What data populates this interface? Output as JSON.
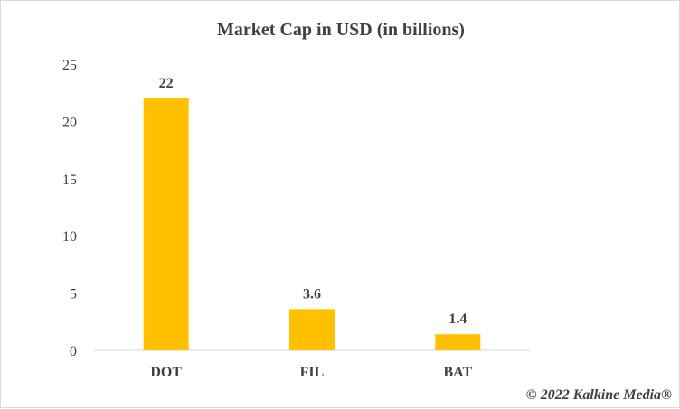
{
  "chart_data": {
    "type": "bar",
    "title": "Market Cap in USD (in billions)",
    "categories": [
      "DOT",
      "FIL",
      "BAT"
    ],
    "values": [
      22,
      3.6,
      1.4
    ],
    "data_labels": [
      "22",
      "3.6",
      "1.4"
    ],
    "ylim": [
      0,
      25
    ],
    "yticks": [
      "0",
      "5",
      "10",
      "15",
      "20",
      "25"
    ],
    "grid": false,
    "bar_color": "#FFC000"
  },
  "credit": "© 2022 Kalkine Media®"
}
